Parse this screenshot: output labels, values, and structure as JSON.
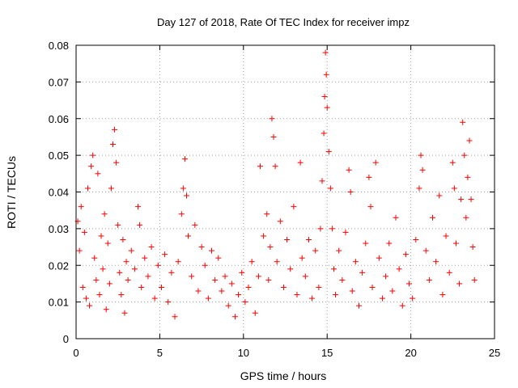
{
  "chart_data": {
    "type": "scatter",
    "title": "Day 127 of 2018, Rate Of TEC Index for receiver impz",
    "xlabel": "GPS time / hours",
    "ylabel": "ROTI / TECUs",
    "xlim": [
      0,
      25
    ],
    "ylim": [
      0,
      0.08
    ],
    "xticks": [
      0,
      5,
      10,
      15,
      20,
      25
    ],
    "xtick_labels": [
      "0",
      "5",
      "10",
      "15",
      "20",
      "25"
    ],
    "yticks": [
      0,
      0.01,
      0.02,
      0.03,
      0.04,
      0.05,
      0.06,
      0.07,
      0.08
    ],
    "ytick_labels": [
      "0",
      "0.01",
      "0.02",
      "0.03",
      "0.04",
      "0.05",
      "0.06",
      "0.07",
      "0.08"
    ],
    "grid": true,
    "marker": "+",
    "series_color": "#ff0000",
    "series": [
      {
        "name": "ROTI",
        "points": [
          [
            0.1,
            0.032
          ],
          [
            0.2,
            0.024
          ],
          [
            0.3,
            0.036
          ],
          [
            0.4,
            0.014
          ],
          [
            0.5,
            0.029
          ],
          [
            0.6,
            0.011
          ],
          [
            0.7,
            0.041
          ],
          [
            0.8,
            0.009
          ],
          [
            0.9,
            0.047
          ],
          [
            1.0,
            0.05
          ],
          [
            1.1,
            0.022
          ],
          [
            1.2,
            0.016
          ],
          [
            1.3,
            0.045
          ],
          [
            1.4,
            0.012
          ],
          [
            1.5,
            0.028
          ],
          [
            1.6,
            0.019
          ],
          [
            1.7,
            0.034
          ],
          [
            1.8,
            0.008
          ],
          [
            1.9,
            0.026
          ],
          [
            2.0,
            0.015
          ],
          [
            2.1,
            0.041
          ],
          [
            2.2,
            0.053
          ],
          [
            2.3,
            0.057
          ],
          [
            2.4,
            0.048
          ],
          [
            2.5,
            0.031
          ],
          [
            2.6,
            0.018
          ],
          [
            2.7,
            0.012
          ],
          [
            2.8,
            0.027
          ],
          [
            2.9,
            0.007
          ],
          [
            3.0,
            0.021
          ],
          [
            3.1,
            0.016
          ],
          [
            3.3,
            0.024
          ],
          [
            3.5,
            0.019
          ],
          [
            3.7,
            0.036
          ],
          [
            3.8,
            0.031
          ],
          [
            3.9,
            0.014
          ],
          [
            4.1,
            0.022
          ],
          [
            4.3,
            0.017
          ],
          [
            4.5,
            0.025
          ],
          [
            4.7,
            0.011
          ],
          [
            4.9,
            0.02
          ],
          [
            5.1,
            0.014
          ],
          [
            5.3,
            0.023
          ],
          [
            5.5,
            0.01
          ],
          [
            5.7,
            0.018
          ],
          [
            5.9,
            0.006
          ],
          [
            6.1,
            0.021
          ],
          [
            6.3,
            0.034
          ],
          [
            6.4,
            0.041
          ],
          [
            6.5,
            0.049
          ],
          [
            6.6,
            0.039
          ],
          [
            6.7,
            0.028
          ],
          [
            6.9,
            0.017
          ],
          [
            7.1,
            0.031
          ],
          [
            7.3,
            0.013
          ],
          [
            7.5,
            0.025
          ],
          [
            7.7,
            0.02
          ],
          [
            7.9,
            0.011
          ],
          [
            8.1,
            0.024
          ],
          [
            8.3,
            0.016
          ],
          [
            8.5,
            0.022
          ],
          [
            8.7,
            0.013
          ],
          [
            8.9,
            0.017
          ],
          [
            9.1,
            0.009
          ],
          [
            9.3,
            0.015
          ],
          [
            9.5,
            0.006
          ],
          [
            9.7,
            0.012
          ],
          [
            9.9,
            0.018
          ],
          [
            10.1,
            0.01
          ],
          [
            10.3,
            0.014
          ],
          [
            10.5,
            0.021
          ],
          [
            10.7,
            0.007
          ],
          [
            10.9,
            0.017
          ],
          [
            11.0,
            0.047
          ],
          [
            11.2,
            0.028
          ],
          [
            11.4,
            0.034
          ],
          [
            11.5,
            0.016
          ],
          [
            11.6,
            0.025
          ],
          [
            11.7,
            0.06
          ],
          [
            11.8,
            0.055
          ],
          [
            11.9,
            0.047
          ],
          [
            12.0,
            0.021
          ],
          [
            12.2,
            0.032
          ],
          [
            12.4,
            0.014
          ],
          [
            12.6,
            0.027
          ],
          [
            12.8,
            0.019
          ],
          [
            13.0,
            0.036
          ],
          [
            13.2,
            0.012
          ],
          [
            13.4,
            0.048
          ],
          [
            13.5,
            0.022
          ],
          [
            13.7,
            0.017
          ],
          [
            13.9,
            0.027
          ],
          [
            14.1,
            0.011
          ],
          [
            14.3,
            0.024
          ],
          [
            14.5,
            0.014
          ],
          [
            14.6,
            0.03
          ],
          [
            14.7,
            0.043
          ],
          [
            14.8,
            0.056
          ],
          [
            14.85,
            0.066
          ],
          [
            14.9,
            0.078
          ],
          [
            14.95,
            0.072
          ],
          [
            15.0,
            0.063
          ],
          [
            15.1,
            0.051
          ],
          [
            15.2,
            0.041
          ],
          [
            15.3,
            0.03
          ],
          [
            15.4,
            0.019
          ],
          [
            15.5,
            0.012
          ],
          [
            15.7,
            0.024
          ],
          [
            15.9,
            0.016
          ],
          [
            16.1,
            0.029
          ],
          [
            16.3,
            0.046
          ],
          [
            16.4,
            0.04
          ],
          [
            16.5,
            0.013
          ],
          [
            16.7,
            0.021
          ],
          [
            16.9,
            0.009
          ],
          [
            17.1,
            0.018
          ],
          [
            17.3,
            0.026
          ],
          [
            17.5,
            0.044
          ],
          [
            17.6,
            0.036
          ],
          [
            17.7,
            0.014
          ],
          [
            17.9,
            0.048
          ],
          [
            18.1,
            0.022
          ],
          [
            18.3,
            0.011
          ],
          [
            18.5,
            0.017
          ],
          [
            18.7,
            0.026
          ],
          [
            18.9,
            0.013
          ],
          [
            19.1,
            0.033
          ],
          [
            19.3,
            0.019
          ],
          [
            19.5,
            0.009
          ],
          [
            19.7,
            0.023
          ],
          [
            19.9,
            0.015
          ],
          [
            20.1,
            0.011
          ],
          [
            20.3,
            0.027
          ],
          [
            20.5,
            0.041
          ],
          [
            20.6,
            0.05
          ],
          [
            20.7,
            0.046
          ],
          [
            20.9,
            0.024
          ],
          [
            21.1,
            0.016
          ],
          [
            21.3,
            0.033
          ],
          [
            21.5,
            0.021
          ],
          [
            21.7,
            0.039
          ],
          [
            21.9,
            0.012
          ],
          [
            22.1,
            0.028
          ],
          [
            22.3,
            0.018
          ],
          [
            22.5,
            0.048
          ],
          [
            22.6,
            0.041
          ],
          [
            22.7,
            0.026
          ],
          [
            22.9,
            0.015
          ],
          [
            23.0,
            0.038
          ],
          [
            23.1,
            0.059
          ],
          [
            23.2,
            0.05
          ],
          [
            23.3,
            0.033
          ],
          [
            23.4,
            0.044
          ],
          [
            23.5,
            0.054
          ],
          [
            23.6,
            0.038
          ],
          [
            23.7,
            0.025
          ],
          [
            23.8,
            0.016
          ]
        ]
      }
    ]
  }
}
